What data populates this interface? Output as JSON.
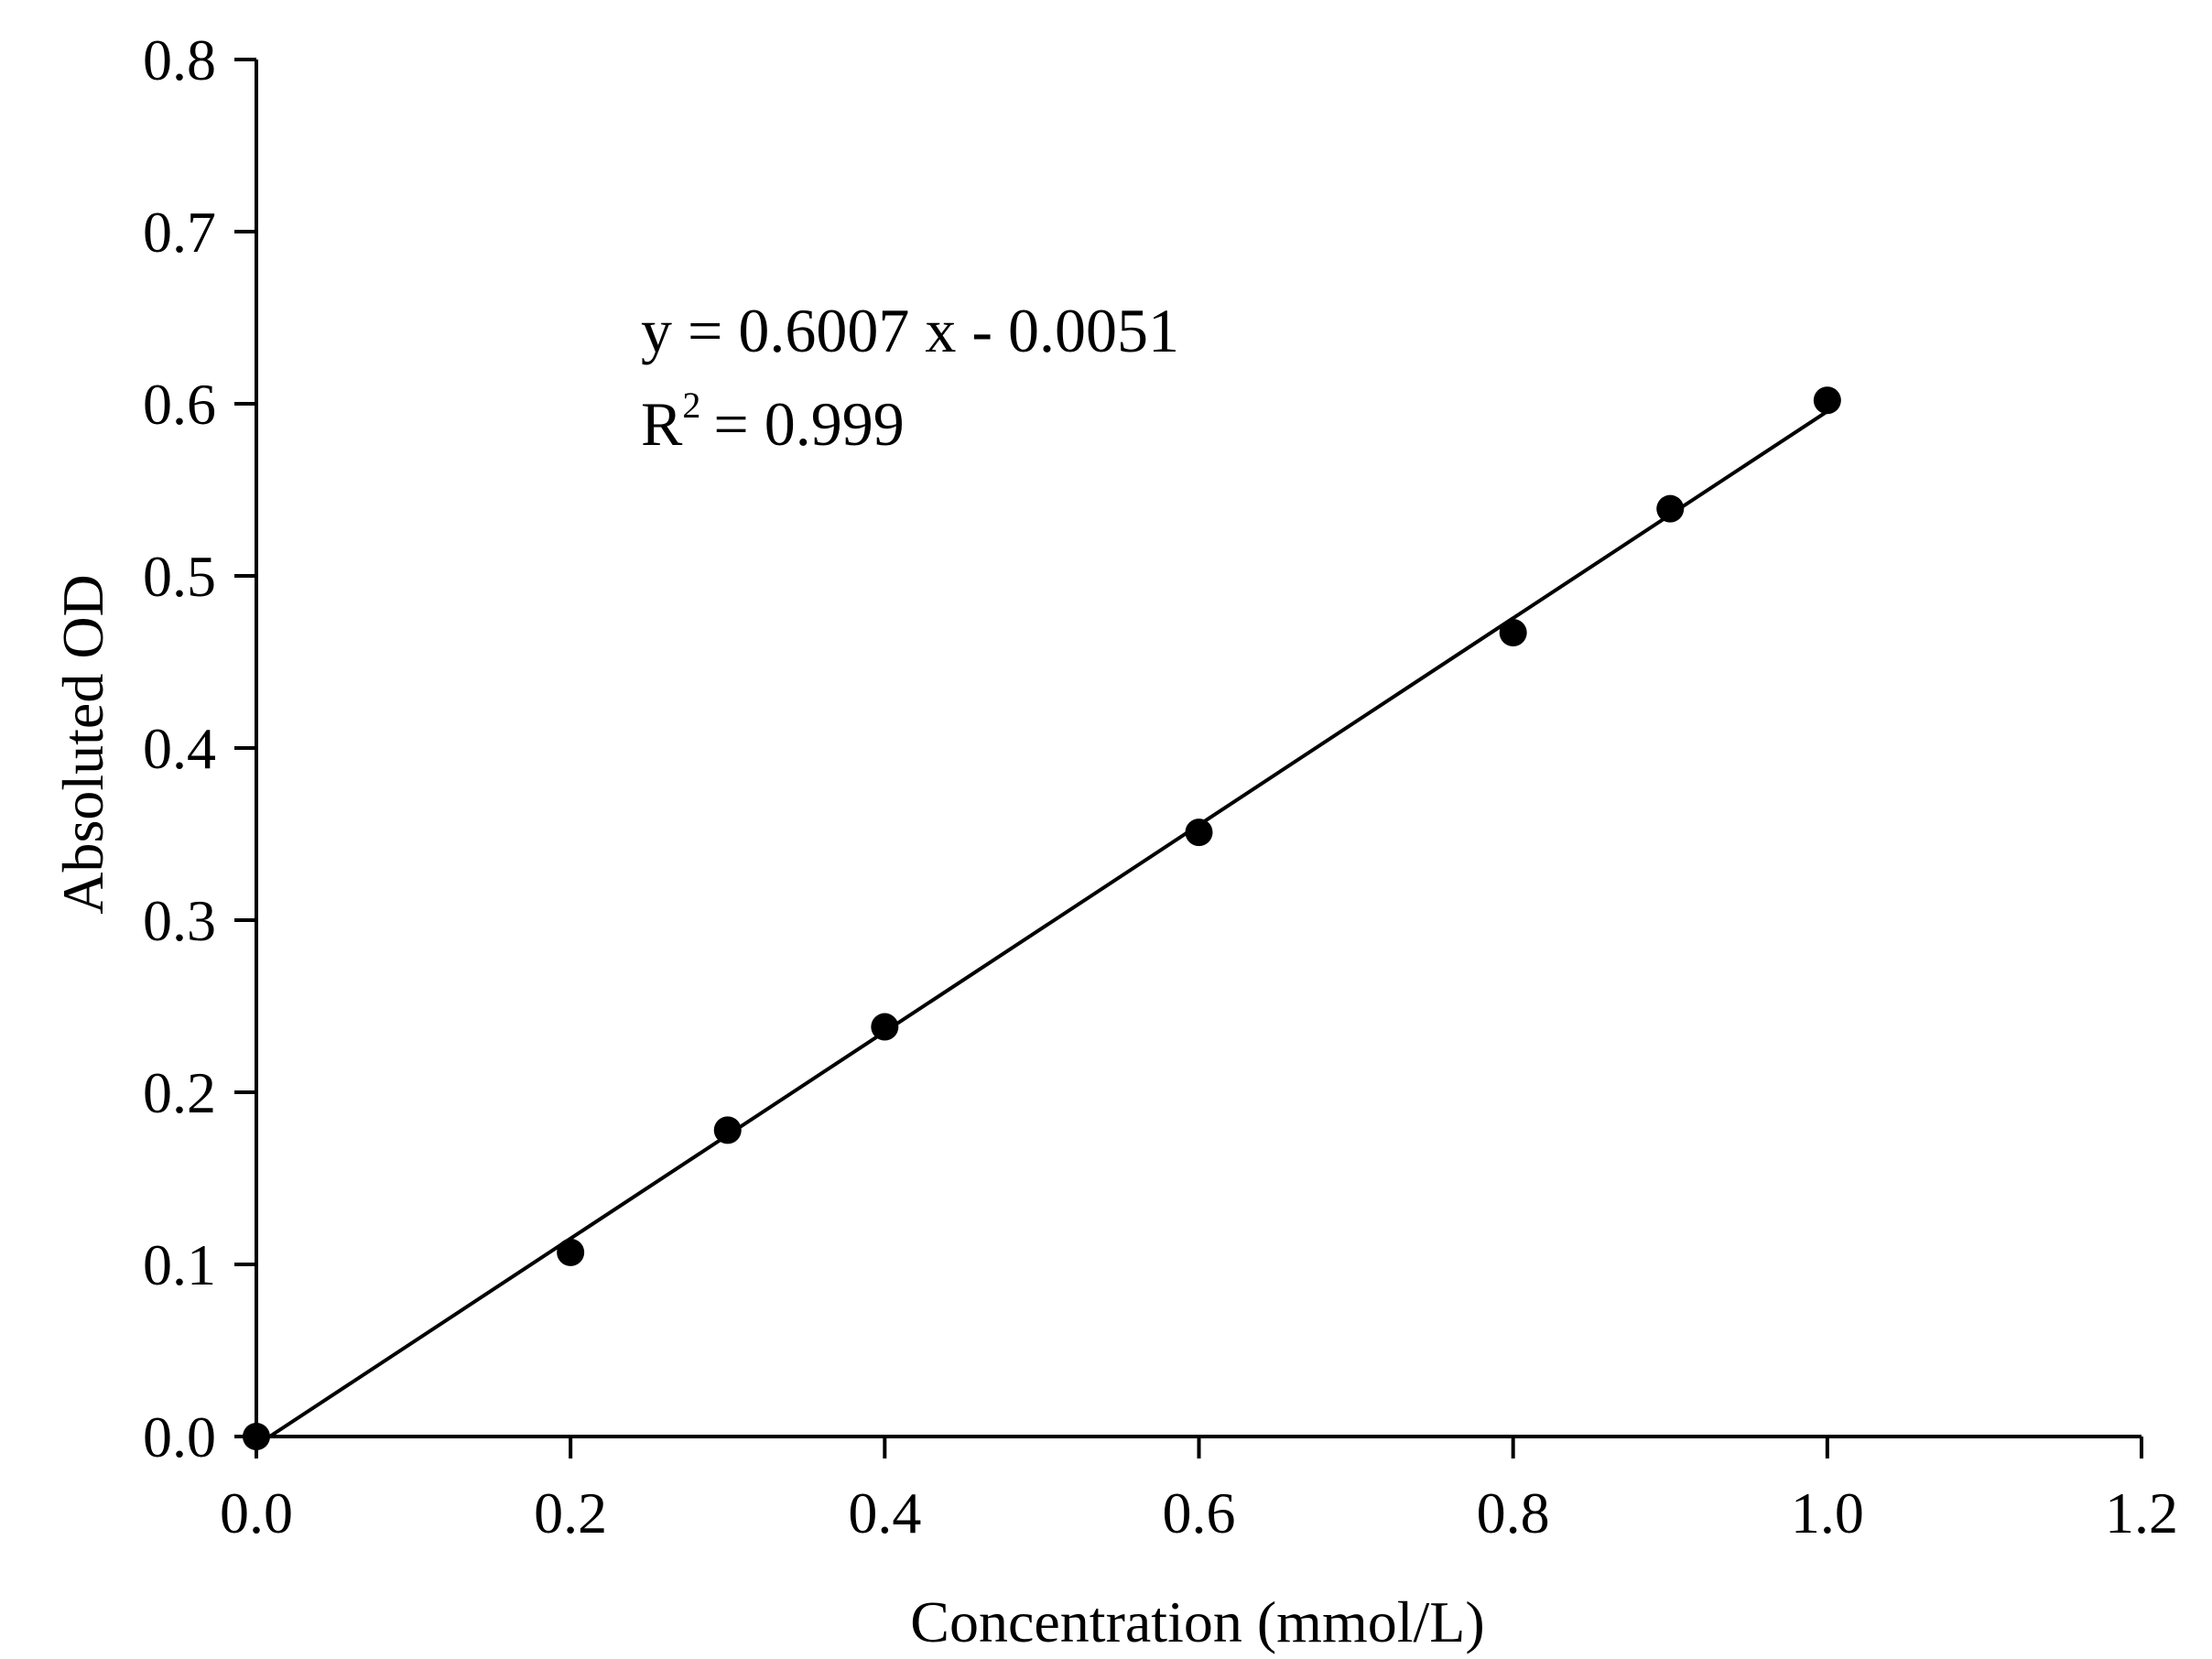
{
  "chart_data": {
    "type": "scatter",
    "xlabel": "Concentration (mmol/L)",
    "ylabel": "Absoluted OD",
    "xlim": [
      0.0,
      1.2
    ],
    "ylim": [
      0.0,
      0.8
    ],
    "xticks": [
      "0.0",
      "0.2",
      "0.4",
      "0.6",
      "0.8",
      "1.0",
      "1.2"
    ],
    "yticks": [
      "0.0",
      "0.1",
      "0.2",
      "0.3",
      "0.4",
      "0.5",
      "0.6",
      "0.7",
      "0.8"
    ],
    "grid": false,
    "points": [
      {
        "x": 0.0,
        "y": 0.0
      },
      {
        "x": 0.2,
        "y": 0.107
      },
      {
        "x": 0.3,
        "y": 0.178
      },
      {
        "x": 0.4,
        "y": 0.238
      },
      {
        "x": 0.6,
        "y": 0.351
      },
      {
        "x": 0.8,
        "y": 0.467
      },
      {
        "x": 0.9,
        "y": 0.539
      },
      {
        "x": 1.0,
        "y": 0.602
      }
    ],
    "fit": {
      "slope": 0.6007,
      "intercept": -0.0051,
      "x_range": [
        0.0,
        1.0
      ]
    },
    "equation_text": "y = 0.6007 x - 0.0051",
    "r2_label": "R",
    "r2_superscript": "2",
    "r2_value_text": "= 0.999",
    "colors": {
      "marker": "#000000",
      "line": "#000000",
      "axis": "#000000"
    }
  }
}
